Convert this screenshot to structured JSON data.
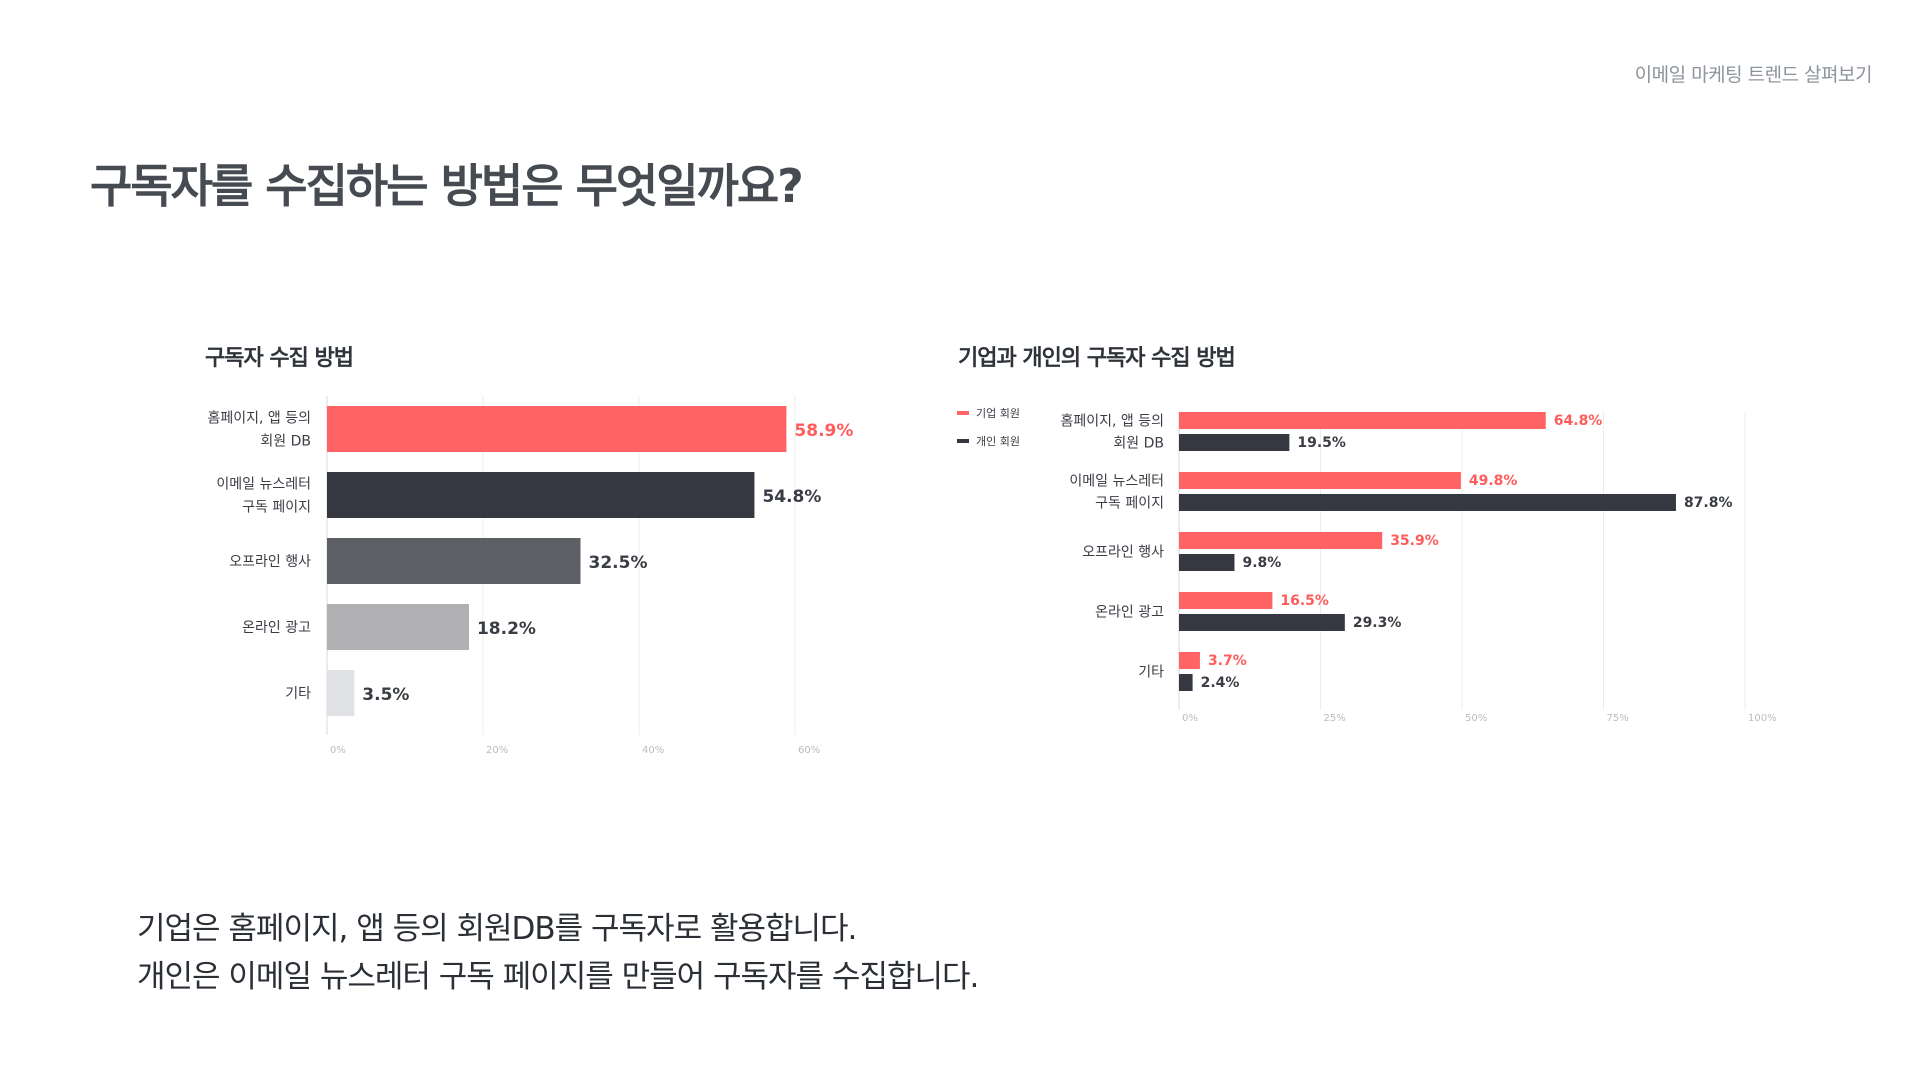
{
  "header": {
    "tag": "이메일 마케팅 트렌드 살펴보기"
  },
  "page": {
    "title": "구독자를 수집하는 방법은 무엇일까요?"
  },
  "chart_data": [
    {
      "type": "bar",
      "orientation": "horizontal",
      "title": "구독자 수집 방법",
      "categories": [
        [
          "홈페이지, 앱 등의",
          "회원 DB"
        ],
        [
          "이메일 뉴스레터",
          "구독 페이지"
        ],
        [
          "오프라인 행사"
        ],
        [
          "온라인 광고"
        ],
        [
          "기타"
        ]
      ],
      "values": [
        58.9,
        54.8,
        32.5,
        18.2,
        3.5
      ],
      "value_labels": [
        "58.9%",
        "54.8%",
        "32.5%",
        "18.2%",
        "3.5%"
      ],
      "bar_colors": [
        "#ff6363",
        "#353841",
        "#5c5f64",
        "#b0b0b2",
        "#e0e1e5"
      ],
      "label_colors": [
        "#ff5c5c",
        "#3a3d44",
        "#3a3d44",
        "#3a3d44",
        "#3a3d44"
      ],
      "xlim": [
        0,
        60
      ],
      "ticks": [
        0,
        20,
        40,
        60
      ],
      "tick_labels": [
        "0%",
        "20%",
        "40%",
        "60%"
      ],
      "xlabel": "",
      "ylabel": ""
    },
    {
      "type": "bar",
      "orientation": "horizontal",
      "title": "기업과 개인의 구독자 수집 방법",
      "categories": [
        [
          "홈페이지, 앱 등의",
          "회원 DB"
        ],
        [
          "이메일 뉴스레터",
          "구독 페이지"
        ],
        [
          "오프라인 행사"
        ],
        [
          "온라인 광고"
        ],
        [
          "기타"
        ]
      ],
      "series": [
        {
          "name": "기업 회원",
          "color": "#ff6363",
          "label_color": "#ff5c5c",
          "values": [
            64.8,
            49.8,
            35.9,
            16.5,
            3.7
          ],
          "value_labels": [
            "64.8%",
            "49.8%",
            "35.9%",
            "16.5%",
            "3.7%"
          ]
        },
        {
          "name": "개인 회원",
          "color": "#353841",
          "label_color": "#3a3d44",
          "values": [
            19.5,
            87.8,
            9.8,
            29.3,
            2.4
          ],
          "value_labels": [
            "19.5%",
            "87.8%",
            "9.8%",
            "29.3%",
            "2.4%"
          ]
        }
      ],
      "legend": "top-left",
      "xlim": [
        0,
        100
      ],
      "ticks": [
        0,
        25,
        50,
        75,
        100
      ],
      "tick_labels": [
        "0%",
        "25%",
        "50%",
        "75%",
        "100%"
      ],
      "xlabel": "",
      "ylabel": ""
    }
  ],
  "footer": {
    "line1": "기업은 홈페이지, 앱 등의 회원DB를 구독자로 활용합니다.",
    "line2": "개인은 이메일 뉴스레터 구독 페이지를 만들어 구독자를 수집합니다."
  }
}
